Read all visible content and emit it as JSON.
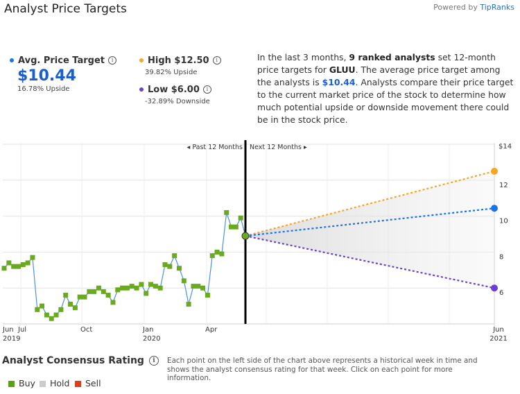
{
  "header": {
    "title": "Analyst Price Targets",
    "powered_prefix": "Powered by",
    "powered_brand": "TipRanks"
  },
  "stats": {
    "avg": {
      "label": "Avg. Price Target",
      "value": "$10.44",
      "sub": "16.78% Upside",
      "color": "#1a73e8"
    },
    "high": {
      "label": "High $12.50",
      "sub": "39.82% Upside",
      "color": "#f5a623"
    },
    "low": {
      "label": "Low $6.00",
      "sub": "-32.89% Downside",
      "color": "#6a3fd4"
    },
    "info_glyph": "i"
  },
  "description": {
    "p1": "In the last 3 months, ",
    "b1": "9 ranked analysts",
    "p2": " set 12-month price targets for ",
    "b2": "GLUU",
    "p3": ". The average price target among the analysts is ",
    "b3": "$10.44",
    "p4": ". Analysts compare their price target to the current market price of the stock to determine how much potential upside or downside movement there could be in the stock price."
  },
  "chart_data": {
    "type": "line",
    "past_label": "◂ Past 12 Months",
    "next_label": "Next 12 Months ▸",
    "y_ticks": [
      "$14",
      "12",
      "10",
      "8",
      "6"
    ],
    "y_tick_values": [
      14,
      12,
      10,
      8,
      6
    ],
    "ylim": [
      4,
      14
    ],
    "x_ticks": [
      {
        "top": "Jun",
        "bottom": "2019"
      },
      {
        "top": "Jul",
        "bottom": ""
      },
      {
        "top": "Oct",
        "bottom": ""
      },
      {
        "top": "Jan",
        "bottom": "2020"
      },
      {
        "top": "Apr",
        "bottom": ""
      },
      {
        "top": "Jun",
        "bottom": "2021"
      }
    ],
    "price_series": {
      "name": "Price",
      "values": [
        7.1,
        7.4,
        7.2,
        7.2,
        7.3,
        7.4,
        7.7,
        4.8,
        5.0,
        4.5,
        4.3,
        4.5,
        4.8,
        5.6,
        5.1,
        4.9,
        5.5,
        5.5,
        5.8,
        5.8,
        6.0,
        5.8,
        5.6,
        5.2,
        5.9,
        6.0,
        6.0,
        6.1,
        6.0,
        6.2,
        5.7,
        6.2,
        6.1,
        6.0,
        7.3,
        7.2,
        7.8,
        7.1,
        6.4,
        5.1,
        6.1,
        6.1,
        6.0,
        5.6,
        7.8,
        8.0,
        7.9,
        10.2,
        9.4,
        9.4,
        9.9,
        8.9
      ],
      "color": "#4a90e2",
      "marker_color": "#6aaa1e"
    },
    "current_price": 8.9,
    "targets": [
      {
        "name": "High",
        "value": 12.5,
        "color": "#f5a623"
      },
      {
        "name": "Average",
        "value": 10.44,
        "color": "#1a73e8"
      },
      {
        "name": "Low",
        "value": 6.0,
        "color": "#6a3fd4"
      }
    ]
  },
  "consensus": {
    "title": "Analyst Consensus Rating",
    "info_glyph": "i",
    "description": "Each point on the left side of the chart above represents a historical week in time and shows the analyst consensus rating for that week. Click on each point for more information.",
    "legend": [
      {
        "label": "Buy",
        "color": "#5a9e1a"
      },
      {
        "label": "Hold",
        "color": "#cccccc"
      },
      {
        "label": "Sell",
        "color": "#d9401e"
      }
    ]
  }
}
